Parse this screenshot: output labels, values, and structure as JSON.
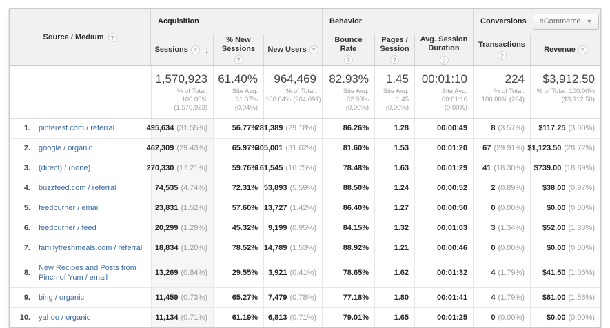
{
  "icons": {
    "help": "?",
    "sort_desc": "↓",
    "dropdown_arrow": "▼"
  },
  "table": {
    "dimension_label": "Source / Medium",
    "groups": {
      "acquisition": "Acquisition",
      "behavior": "Behavior",
      "conversions": "Conversions",
      "conversions_selector": "eCommerce"
    },
    "columns": {
      "sessions": "Sessions",
      "new_sessions": "% New Sessions",
      "new_users": "New Users",
      "bounce": "Bounce Rate",
      "pages": "Pages / Session",
      "duration": "Avg. Session Duration",
      "transactions": "Transactions",
      "revenue": "Revenue"
    },
    "totals": {
      "sessions": {
        "value": "1,570,923",
        "sub1": "% of Total:",
        "sub2": "100.00%",
        "sub3": "(1,570,923)"
      },
      "new_sessions": {
        "value": "61.40%",
        "sub1": "Site Avg:",
        "sub2": "61.37%",
        "sub3": "(0.04%)"
      },
      "new_users": {
        "value": "964,469",
        "sub1": "% of Total:",
        "sub2": "100.04% (964,091)"
      },
      "bounce": {
        "value": "82.93%",
        "sub1": "Site Avg:",
        "sub2": "82.93%",
        "sub3": "(0.00%)"
      },
      "pages": {
        "value": "1.45",
        "sub1": "Site Avg:",
        "sub2": "1.45",
        "sub3": "(0.00%)"
      },
      "duration": {
        "value": "00:01:10",
        "sub1": "Site Avg:",
        "sub2": "00:01:10",
        "sub3": "(0.00%)"
      },
      "transactions": {
        "value": "224",
        "sub1": "% of Total:",
        "sub2": "100.00% (224)"
      },
      "revenue": {
        "value": "$3,912.50",
        "sub1": "% of Total: 100.00%",
        "sub2": "($3,912.50)"
      }
    },
    "rows": [
      {
        "rank": "1.",
        "source": "pinterest.com / referral",
        "sessions": "495,634",
        "sessions_pct": "(31.55%)",
        "new_sessions": "56.77%",
        "new_users": "281,389",
        "new_users_pct": "(29.18%)",
        "bounce": "86.26%",
        "pages": "1.28",
        "duration": "00:00:49",
        "transactions": "8",
        "transactions_pct": "(3.57%)",
        "revenue": "$117.25",
        "revenue_pct": "(3.00%)"
      },
      {
        "rank": "2.",
        "source": "google / organic",
        "sessions": "462,309",
        "sessions_pct": "(29.43%)",
        "new_sessions": "65.97%",
        "new_users": "305,001",
        "new_users_pct": "(31.62%)",
        "bounce": "81.60%",
        "pages": "1.53",
        "duration": "00:01:20",
        "transactions": "67",
        "transactions_pct": "(29.91%)",
        "revenue": "$1,123.50",
        "revenue_pct": "(28.72%)"
      },
      {
        "rank": "3.",
        "source": "(direct) / (none)",
        "sessions": "270,330",
        "sessions_pct": "(17.21%)",
        "new_sessions": "59.76%",
        "new_users": "161,545",
        "new_users_pct": "(16.75%)",
        "bounce": "78.48%",
        "pages": "1.63",
        "duration": "00:01:29",
        "transactions": "41",
        "transactions_pct": "(18.30%)",
        "revenue": "$739.00",
        "revenue_pct": "(18.89%)"
      },
      {
        "rank": "4.",
        "source": "buzzfeed.com / referral",
        "sessions": "74,535",
        "sessions_pct": "(4.74%)",
        "new_sessions": "72.31%",
        "new_users": "53,893",
        "new_users_pct": "(5.59%)",
        "bounce": "88.50%",
        "pages": "1.24",
        "duration": "00:00:52",
        "transactions": "2",
        "transactions_pct": "(0.89%)",
        "revenue": "$38.00",
        "revenue_pct": "(0.97%)"
      },
      {
        "rank": "5.",
        "source": "feedburner / email",
        "sessions": "23,831",
        "sessions_pct": "(1.52%)",
        "new_sessions": "57.60%",
        "new_users": "13,727",
        "new_users_pct": "(1.42%)",
        "bounce": "86.40%",
        "pages": "1.27",
        "duration": "00:00:50",
        "transactions": "0",
        "transactions_pct": "(0.00%)",
        "revenue": "$0.00",
        "revenue_pct": "(0.00%)"
      },
      {
        "rank": "6.",
        "source": "feedburner / feed",
        "sessions": "20,299",
        "sessions_pct": "(1.29%)",
        "new_sessions": "45.32%",
        "new_users": "9,199",
        "new_users_pct": "(0.95%)",
        "bounce": "84.15%",
        "pages": "1.32",
        "duration": "00:01:03",
        "transactions": "3",
        "transactions_pct": "(1.34%)",
        "revenue": "$52.00",
        "revenue_pct": "(1.33%)"
      },
      {
        "rank": "7.",
        "source": "familyfreshmeals.com / referral",
        "sessions": "18,834",
        "sessions_pct": "(1.20%)",
        "new_sessions": "78.52%",
        "new_users": "14,789",
        "new_users_pct": "(1.53%)",
        "bounce": "88.92%",
        "pages": "1.21",
        "duration": "00:00:46",
        "transactions": "0",
        "transactions_pct": "(0.00%)",
        "revenue": "$0.00",
        "revenue_pct": "(0.00%)"
      },
      {
        "rank": "8.",
        "source": "New Recipes and Posts from Pinch of Yum / email",
        "sessions": "13,269",
        "sessions_pct": "(0.84%)",
        "new_sessions": "29.55%",
        "new_users": "3,921",
        "new_users_pct": "(0.41%)",
        "bounce": "78.65%",
        "pages": "1.62",
        "duration": "00:01:32",
        "transactions": "4",
        "transactions_pct": "(1.79%)",
        "revenue": "$41.50",
        "revenue_pct": "(1.06%)"
      },
      {
        "rank": "9.",
        "source": "bing / organic",
        "sessions": "11,459",
        "sessions_pct": "(0.73%)",
        "new_sessions": "65.27%",
        "new_users": "7,479",
        "new_users_pct": "(0.78%)",
        "bounce": "77.18%",
        "pages": "1.80",
        "duration": "00:01:41",
        "transactions": "4",
        "transactions_pct": "(1.79%)",
        "revenue": "$61.00",
        "revenue_pct": "(1.56%)"
      },
      {
        "rank": "10.",
        "source": "yahoo / organic",
        "sessions": "11,134",
        "sessions_pct": "(0.71%)",
        "new_sessions": "61.19%",
        "new_users": "6,813",
        "new_users_pct": "(0.71%)",
        "bounce": "79.01%",
        "pages": "1.65",
        "duration": "00:01:25",
        "transactions": "0",
        "transactions_pct": "(0.00%)",
        "revenue": "$0.00",
        "revenue_pct": "(0.00%)"
      }
    ]
  }
}
